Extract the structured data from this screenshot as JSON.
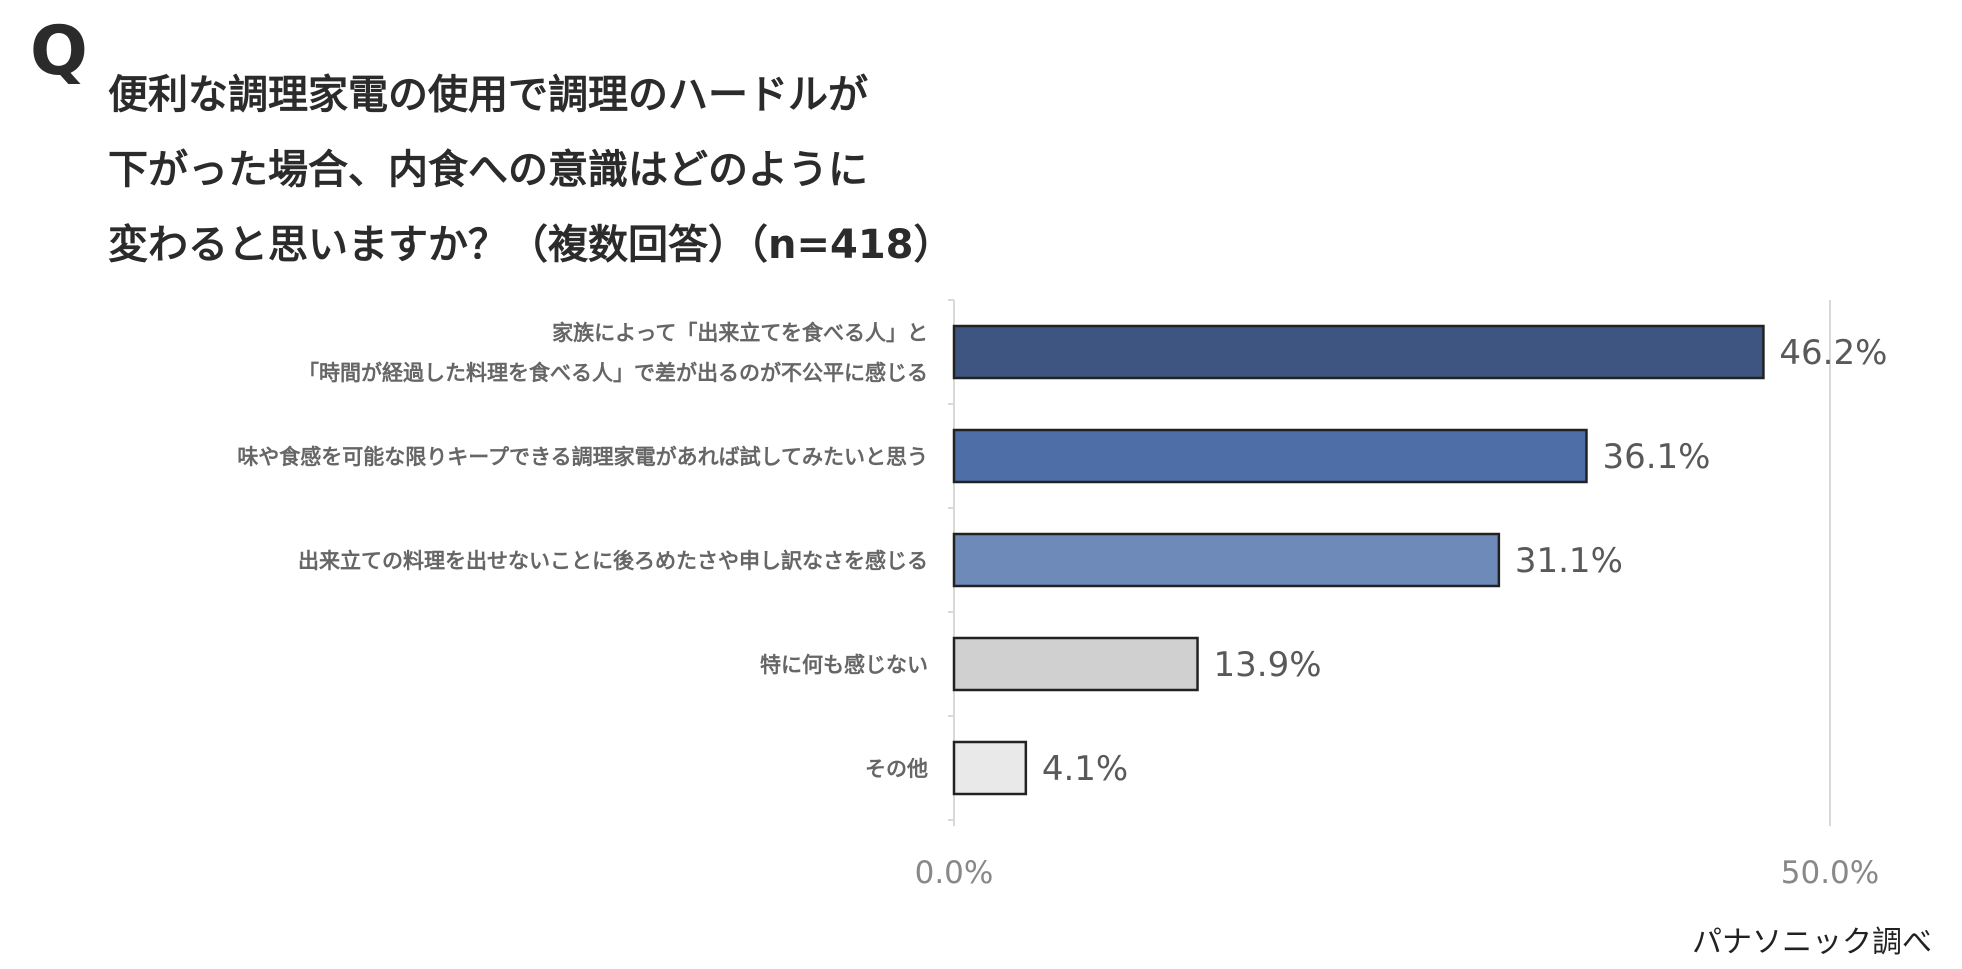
{
  "question": {
    "marker": "Q",
    "lines": [
      "便利な調理家電の使用で調理のハードルが",
      "下がった場合、内食への意識はどのように",
      "変わると思いますか？（複数回答）（n=418）"
    ]
  },
  "source": "パナソニック調べ",
  "colors": {
    "bar1": "#3d5580",
    "bar2": "#4e6ea8",
    "bar3": "#6e8ab8",
    "bar4": "#d0d0d0",
    "bar5": "#e9e9e9",
    "bar_stroke": "#222222",
    "grid": "#d9d9d9"
  },
  "chart_data": {
    "type": "bar",
    "orientation": "horizontal",
    "categories": [
      [
        "家族によって「出来立てを食べる人」と",
        "「時間が経過した料理を食べる人」で差が出るのが不公平に感じる"
      ],
      [
        "味や食感を可能な限りキープできる調理家電があれば試してみたいと思う"
      ],
      [
        "出来立ての料理を出せないことに後ろめたさや申し訳なさを感じる"
      ],
      [
        "特に何も感じない"
      ],
      [
        "その他"
      ]
    ],
    "values": [
      46.2,
      36.1,
      31.1,
      13.9,
      4.1
    ],
    "value_labels": [
      "46.2%",
      "36.1%",
      "31.1%",
      "13.9%",
      "4.1%"
    ],
    "xlim": [
      0,
      50
    ],
    "ticks": [
      0,
      50
    ],
    "tick_labels": [
      "0.0%",
      "50.0%"
    ],
    "grid": true
  }
}
